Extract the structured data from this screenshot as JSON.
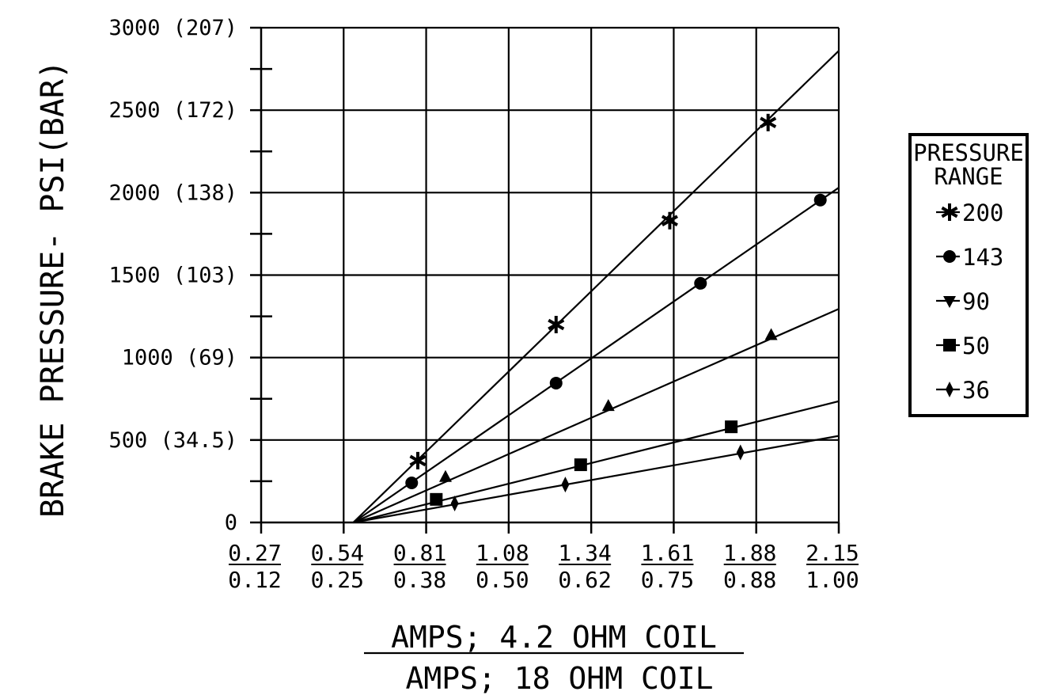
{
  "chart_data": {
    "type": "line",
    "title": "",
    "ylabel": "BRAKE PRESSURE- PSI(BAR)",
    "xlabel_top": "AMPS; 4.2 OHM COIL",
    "xlabel_bottom": "AMPS; 18 OHM COIL",
    "y_ticks": [
      "0",
      "500 (34.5)",
      "1000 (69)",
      "1500 (103)",
      "2000 (138)",
      "2500 (172)",
      "3000 (207)"
    ],
    "y_tick_values": [
      0,
      500,
      1000,
      1500,
      2000,
      2500,
      3000
    ],
    "ylim": [
      0,
      3000
    ],
    "x_ticks_top": [
      "0.27",
      "0.54",
      "0.81",
      "1.08",
      "1.34",
      "1.61",
      "1.88",
      "2.15"
    ],
    "x_ticks_bottom": [
      "0.12",
      "0.25",
      "0.38",
      "0.50",
      "0.62",
      "0.75",
      "0.88",
      "1.00"
    ],
    "xlim": [
      0.27,
      2.15
    ],
    "grid": true,
    "legend_position": "right",
    "legend_title": [
      "PRESSURE",
      "RANGE"
    ],
    "series": [
      {
        "name": "200",
        "marker": "star",
        "line": [
          [
            0.57,
            0
          ],
          [
            2.15,
            2860
          ]
        ],
        "points": [
          [
            0.78,
            375
          ],
          [
            1.23,
            1200
          ],
          [
            1.6,
            1830
          ],
          [
            1.92,
            2425
          ]
        ]
      },
      {
        "name": "143",
        "marker": "circle",
        "line": [
          [
            0.57,
            0
          ],
          [
            2.15,
            2030
          ]
        ],
        "points": [
          [
            0.76,
            240
          ],
          [
            1.23,
            845
          ],
          [
            1.7,
            1450
          ],
          [
            2.09,
            1955
          ]
        ]
      },
      {
        "name": "90",
        "marker": "triangle",
        "line": [
          [
            0.57,
            0
          ],
          [
            2.15,
            1295
          ]
        ],
        "points": [
          [
            0.87,
            275
          ],
          [
            1.4,
            705
          ],
          [
            1.93,
            1135
          ]
        ]
      },
      {
        "name": "50",
        "marker": "square",
        "line": [
          [
            0.57,
            0
          ],
          [
            2.15,
            735
          ]
        ],
        "points": [
          [
            0.84,
            140
          ],
          [
            1.31,
            350
          ],
          [
            1.8,
            580
          ]
        ]
      },
      {
        "name": "36",
        "marker": "diamond",
        "line": [
          [
            0.57,
            0
          ],
          [
            2.15,
            525
          ]
        ],
        "points": [
          [
            0.9,
            115
          ],
          [
            1.26,
            230
          ],
          [
            1.83,
            425
          ]
        ]
      }
    ]
  }
}
